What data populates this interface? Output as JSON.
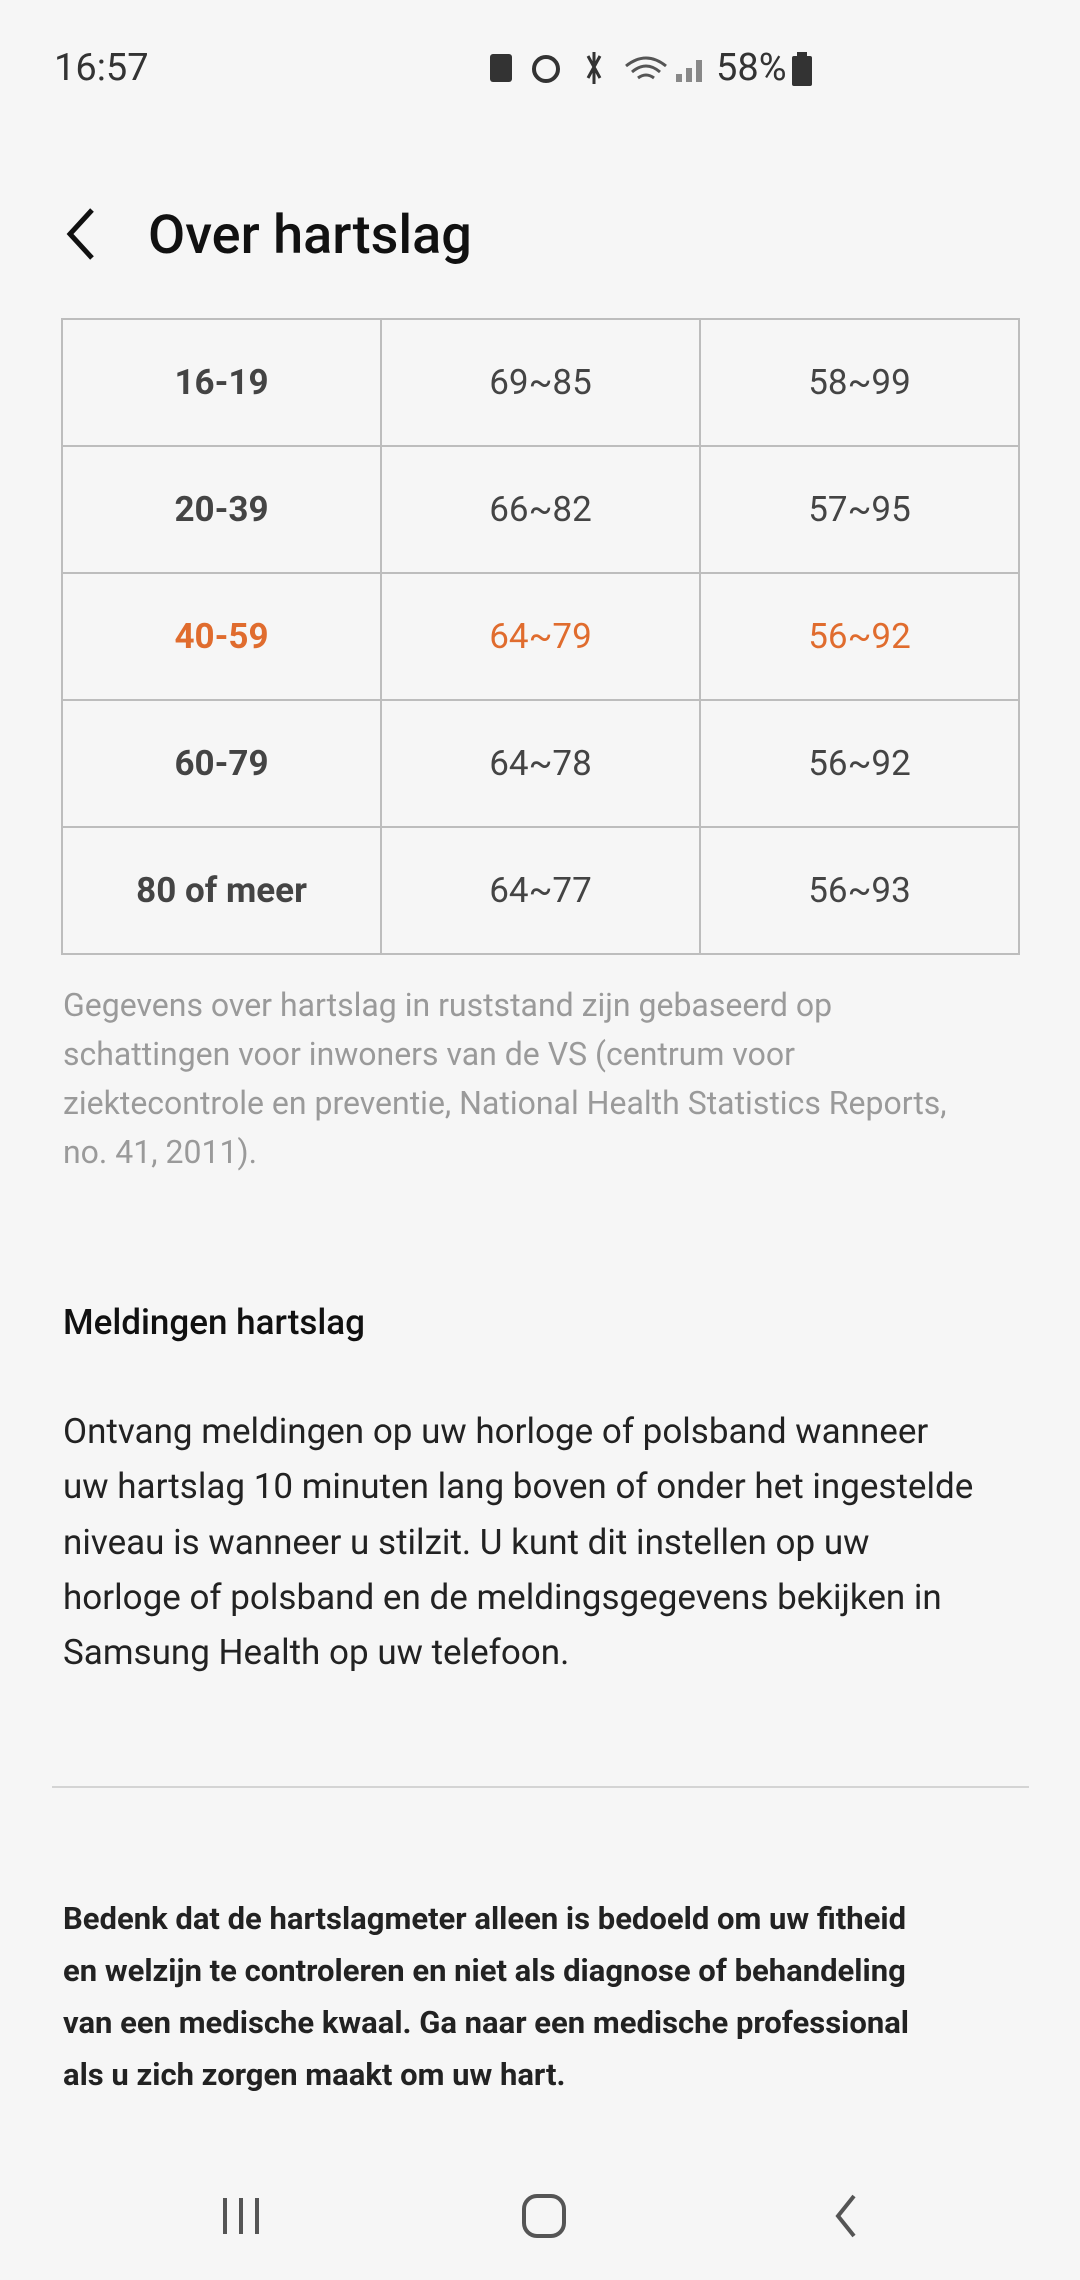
{
  "status": {
    "time": "16:57",
    "battery": "58%"
  },
  "header": {
    "title": "Over hartslag"
  },
  "table": {
    "rows": [
      [
        "16-19",
        "69~85",
        "58~99"
      ],
      [
        "20-39",
        "66~82",
        "57~95"
      ],
      [
        "40-59",
        "64~79",
        "56~92"
      ],
      [
        "60-79",
        "64~78",
        "56~92"
      ],
      [
        "80 of meer",
        "64~77",
        "56~93"
      ]
    ]
  },
  "footnote": {
    "lines": [
      "Gegevens over hartslag in ruststand zijn gebaseerd op",
      "schattingen voor inwoners van de VS (centrum voor",
      "ziektecontrole en preventie, National Health Statistics Reports,",
      "no. 41, 2011)."
    ]
  },
  "section": {
    "title": "Meldingen hartslag",
    "lines": [
      "Ontvang meldingen op uw horloge of polsband wanneer",
      "uw hartslag 10 minuten lang boven of onder het ingestelde",
      "niveau is wanneer u stilzit. U kunt dit instellen op uw",
      "horloge of polsband en de meldingsgegevens bekijken in",
      "Samsung Health op uw telefoon."
    ]
  },
  "disclaimer": {
    "lines": [
      "Bedenk dat de hartslagmeter alleen is bedoeld om uw fitheid",
      "en welzijn te controleren en niet als diagnose of behandeling",
      "van een medische kwaal. Ga naar een medische professional",
      "als u zich zorgen maakt om uw hart."
    ]
  }
}
